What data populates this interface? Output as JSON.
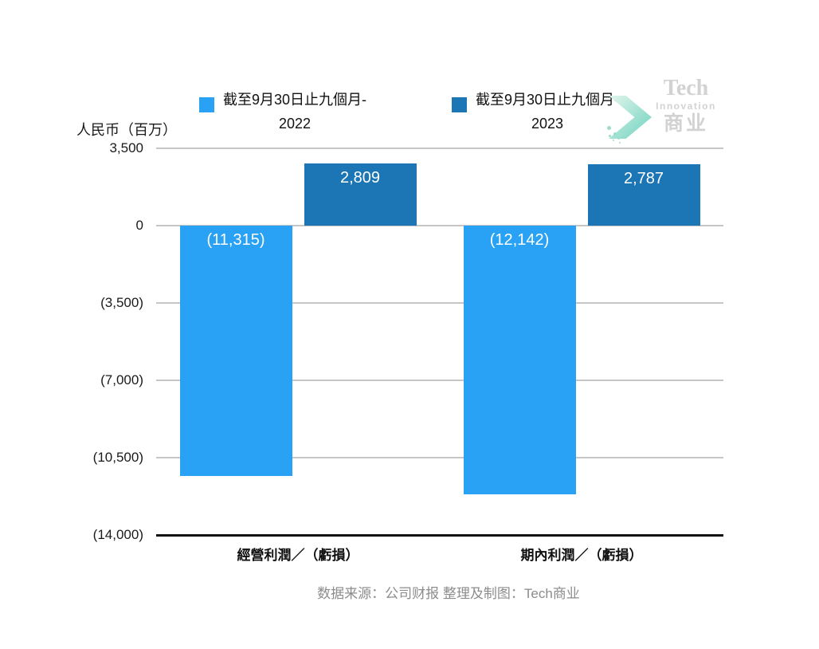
{
  "header": {
    "legend": {
      "items": [
        {
          "line1": "截至9月30日止九個月-",
          "line2": "2022",
          "color": "#29A2F5"
        },
        {
          "line1": "截至9月30日止九個月-",
          "line2": "2023",
          "color": "#1C75B4"
        }
      ]
    },
    "logo": {
      "name": "Tech Innovation 商业",
      "line1": "Tech",
      "line2": "Innovation",
      "line3": "商业",
      "text_color": "#D2D2D2",
      "arrow_gradient_from": "#E3F5EC",
      "arrow_gradient_to": "#7ED7C5",
      "dot_color": "#9ADFCB"
    }
  },
  "chart_data": {
    "type": "bar",
    "title": "",
    "categories": [
      "經營利潤／（虧損）",
      "期內利潤／（虧損）"
    ],
    "series": [
      {
        "name": "截至9月30日止九個月-2022",
        "color": "#29A2F5",
        "values": [
          -11315,
          -12142
        ],
        "value_labels": [
          "(11,315)",
          "(12,142)"
        ]
      },
      {
        "name": "截至9月30日止九個月-2023",
        "color": "#1C75B4",
        "values": [
          2809,
          2787
        ],
        "value_labels": [
          "2,809",
          "2,787"
        ]
      }
    ],
    "xlabel": "",
    "ylabel": "人民币（百万）",
    "ylim": [
      -14000,
      3500
    ],
    "yticks": [
      {
        "value": 3500,
        "label": "3,500"
      },
      {
        "value": 0,
        "label": "0"
      },
      {
        "value": -3500,
        "label": "(3,500)"
      },
      {
        "value": -7000,
        "label": "(7,000)"
      },
      {
        "value": -10500,
        "label": "(10,500)"
      },
      {
        "value": -14000,
        "label": "(14,000)"
      }
    ],
    "grid": true,
    "legend_position": "top",
    "gridline_color": "#C6C6C6",
    "axis_line_color": "#111111",
    "value_label_color": "#FFFFFF"
  },
  "footer": {
    "source_note": "数据来源：公司财报 整理及制图：Tech商业"
  }
}
